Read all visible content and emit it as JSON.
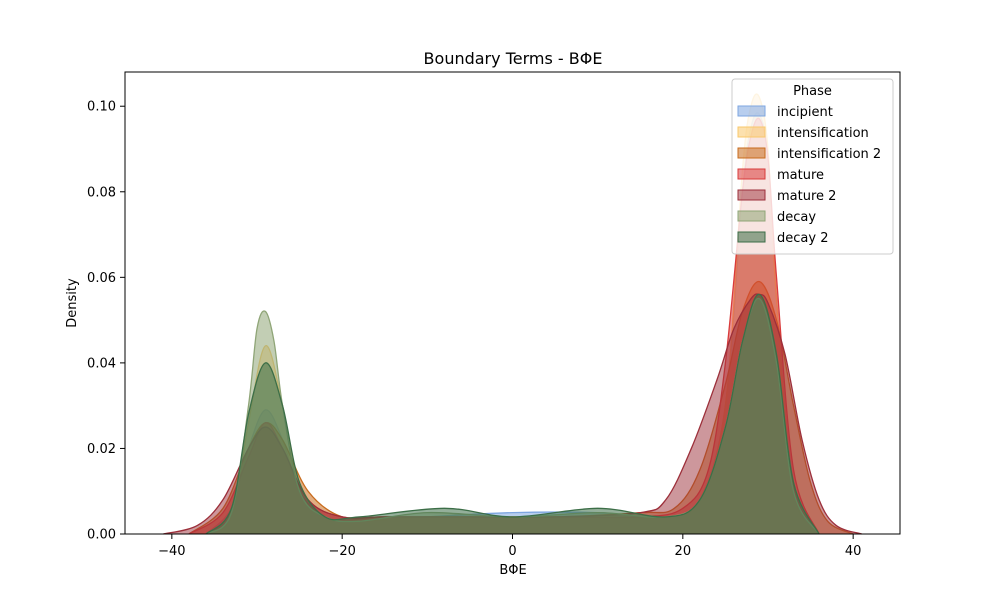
{
  "chart_data": {
    "type": "area",
    "title": "Boundary Terms - BΦE",
    "xlabel": "BΦE",
    "ylabel": "Density",
    "xlim": [
      -45.5,
      45.5
    ],
    "ylim": [
      0,
      0.108
    ],
    "xticks": [
      -40,
      -20,
      0,
      20,
      40
    ],
    "xtick_labels": [
      "−40",
      "−20",
      "0",
      "20",
      "40"
    ],
    "yticks": [
      0,
      0.02,
      0.04,
      0.06,
      0.08,
      0.1
    ],
    "ytick_labels": [
      "0.00",
      "0.02",
      "0.04",
      "0.06",
      "0.08",
      "0.10"
    ],
    "grid": false,
    "legend": {
      "title": "Phase",
      "placement": "top-right"
    },
    "series": [
      {
        "name": "incipient",
        "color": "#7ea6e0",
        "fill_opacity": 0.55,
        "x": [
          -36,
          -33,
          -31,
          -29,
          -27,
          -25,
          -22,
          -18,
          -10,
          0,
          10,
          18,
          22,
          25,
          27,
          28,
          29,
          30,
          31,
          33,
          36
        ],
        "y": [
          0,
          0.006,
          0.02,
          0.029,
          0.022,
          0.01,
          0.004,
          0.003,
          0.004,
          0.005,
          0.005,
          0.004,
          0.008,
          0.03,
          0.08,
          0.095,
          0.098,
          0.088,
          0.055,
          0.012,
          0
        ]
      },
      {
        "name": "intensification",
        "color": "#f9c86b",
        "fill_opacity": 0.55,
        "x": [
          -36,
          -33,
          -31,
          -29,
          -27,
          -25,
          -22,
          -18,
          -10,
          0,
          10,
          18,
          22,
          25,
          27,
          28,
          29,
          30,
          31,
          33,
          36
        ],
        "y": [
          0,
          0.004,
          0.026,
          0.044,
          0.03,
          0.01,
          0.004,
          0.003,
          0.004,
          0.004,
          0.004,
          0.004,
          0.008,
          0.03,
          0.085,
          0.1,
          0.102,
          0.09,
          0.055,
          0.01,
          0
        ]
      },
      {
        "name": "intensification 2",
        "color": "#c86b1c",
        "fill_opacity": 0.55,
        "x": [
          -38,
          -34,
          -31,
          -29,
          -27,
          -24,
          -20,
          -15,
          -5,
          5,
          15,
          19,
          22,
          25,
          27,
          29,
          31,
          33,
          35,
          37,
          40
        ],
        "y": [
          0,
          0.006,
          0.02,
          0.026,
          0.022,
          0.01,
          0.004,
          0.004,
          0.004,
          0.004,
          0.005,
          0.006,
          0.015,
          0.035,
          0.052,
          0.059,
          0.05,
          0.03,
          0.012,
          0.003,
          0
        ]
      },
      {
        "name": "mature",
        "color": "#d93b3b",
        "fill_opacity": 0.55,
        "x": [
          -38,
          -34,
          -31,
          -29,
          -27,
          -24,
          -20,
          -15,
          -5,
          5,
          15,
          20,
          23,
          25,
          27,
          28,
          29,
          30,
          31,
          33,
          36
        ],
        "y": [
          0,
          0.005,
          0.018,
          0.026,
          0.02,
          0.008,
          0.004,
          0.004,
          0.004,
          0.004,
          0.004,
          0.006,
          0.015,
          0.04,
          0.08,
          0.093,
          0.097,
          0.088,
          0.06,
          0.015,
          0
        ]
      },
      {
        "name": "mature 2",
        "color": "#9c2f3a",
        "fill_opacity": 0.5,
        "x": [
          -41,
          -37,
          -34,
          -31,
          -29,
          -27,
          -24,
          -20,
          -15,
          -5,
          5,
          15,
          18,
          21,
          24,
          26,
          28,
          29,
          30,
          32,
          34,
          36,
          38,
          41
        ],
        "y": [
          0,
          0.002,
          0.008,
          0.02,
          0.025,
          0.02,
          0.008,
          0.004,
          0.004,
          0.004,
          0.004,
          0.005,
          0.008,
          0.02,
          0.036,
          0.048,
          0.055,
          0.056,
          0.054,
          0.042,
          0.022,
          0.008,
          0.002,
          0
        ]
      },
      {
        "name": "decay",
        "color": "#8fa577",
        "fill_opacity": 0.55,
        "x": [
          -36,
          -33,
          -31,
          -30,
          -29,
          -28,
          -27,
          -25,
          -22,
          -18,
          -10,
          0,
          10,
          18,
          22,
          25,
          27,
          29,
          31,
          33,
          36
        ],
        "y": [
          0,
          0.005,
          0.03,
          0.048,
          0.052,
          0.045,
          0.03,
          0.01,
          0.004,
          0.003,
          0.005,
          0.004,
          0.005,
          0.004,
          0.008,
          0.025,
          0.045,
          0.055,
          0.04,
          0.01,
          0
        ]
      },
      {
        "name": "decay 2",
        "color": "#3c6e47",
        "fill_opacity": 0.55,
        "x": [
          -36,
          -33,
          -31,
          -29,
          -27,
          -25,
          -22,
          -18,
          -8,
          0,
          10,
          18,
          22,
          25,
          27,
          29,
          31,
          33,
          36
        ],
        "y": [
          0,
          0.006,
          0.028,
          0.04,
          0.03,
          0.012,
          0.004,
          0.004,
          0.006,
          0.004,
          0.006,
          0.004,
          0.008,
          0.025,
          0.045,
          0.056,
          0.042,
          0.012,
          0
        ]
      }
    ]
  }
}
